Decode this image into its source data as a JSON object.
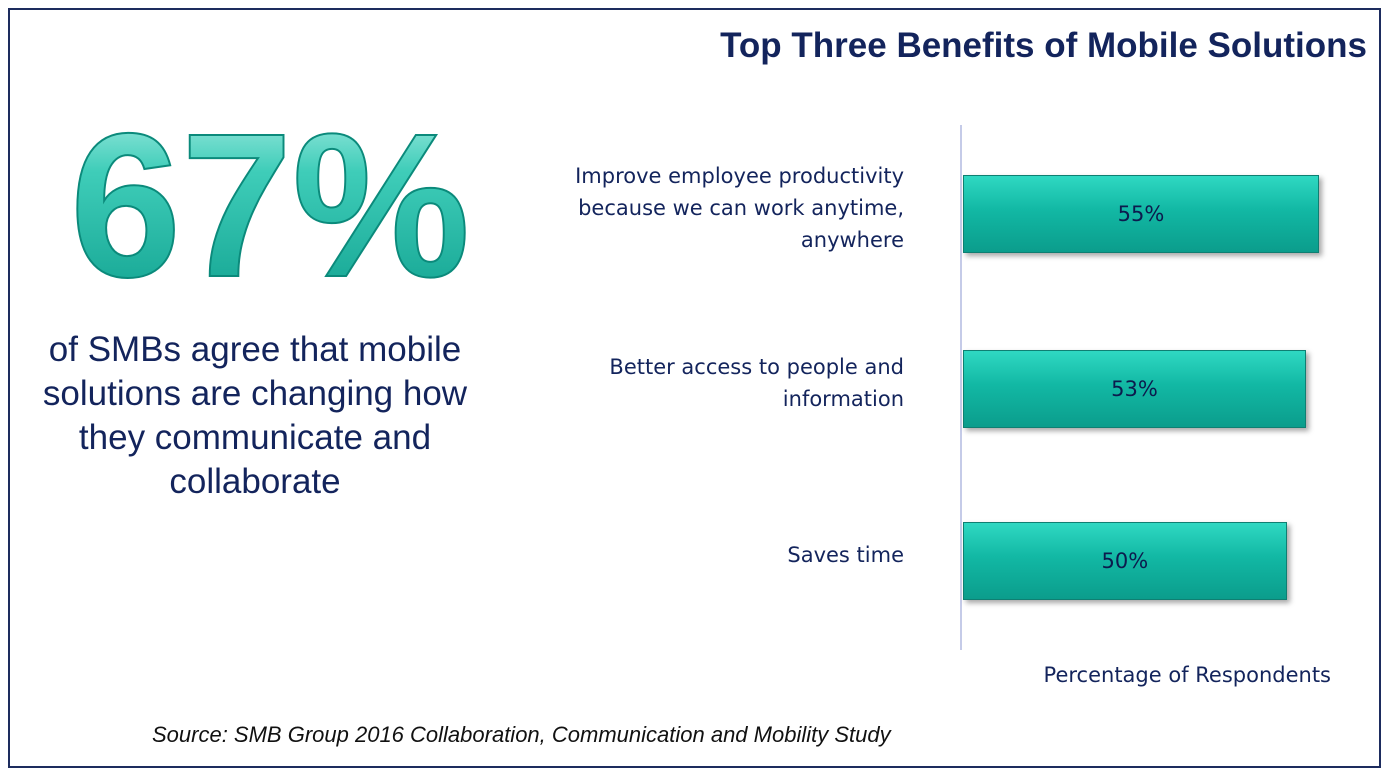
{
  "headline": {
    "stat": "67%",
    "caption": "of SMBs agree that mobile solutions are changing how they communicate and collaborate"
  },
  "source": "Source: SMB Group 2016 Collaboration, Communication and Mobility Study",
  "colors": {
    "navy": "#13245c",
    "teal_light": "#2fd8c2",
    "teal": "#12b8a4",
    "teal_dark": "#0b9d8c"
  },
  "chart_data": {
    "type": "bar",
    "orientation": "horizontal",
    "title": "Top Three Benefits of Mobile Solutions",
    "categories": [
      "Improve employee productivity because we can work anytime, anywhere",
      "Better access to people and information",
      "Saves time"
    ],
    "values": [
      55,
      53,
      50
    ],
    "value_labels": [
      "55%",
      "53%",
      "50%"
    ],
    "xlabel": "Percentage of Respondents",
    "xlim": [
      0,
      55
    ],
    "grid": false,
    "legend": "none"
  }
}
